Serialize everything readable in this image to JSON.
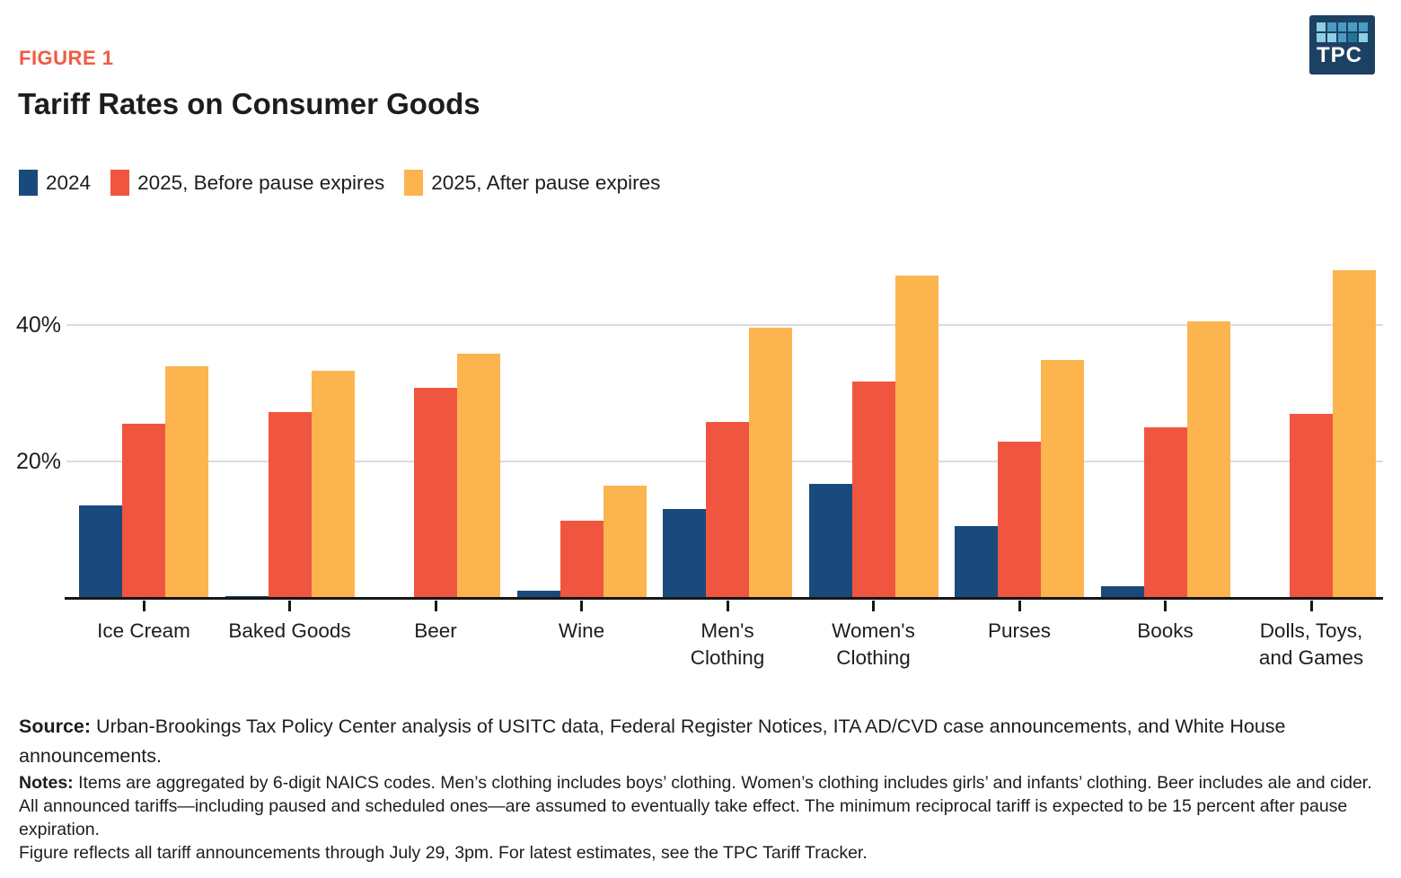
{
  "figure_label": "FIGURE 1",
  "title": "Tariff Rates on Consumer Goods",
  "logo": {
    "text": "TPC",
    "bg_color": "#1c4163",
    "square_colors": {
      "light": "#8ecfe3",
      "med": "#4a9cc4",
      "dark": "#23749b"
    },
    "square_pattern": [
      [
        "light",
        "med",
        "med",
        "med",
        "med"
      ],
      [
        "light",
        "light",
        "med",
        "dark",
        "light"
      ]
    ]
  },
  "chart_data": {
    "type": "bar",
    "title": "Tariff Rates on Consumer Goods",
    "categories": [
      "Ice Cream",
      "Baked Goods",
      "Beer",
      "Wine",
      "Men's Clothing",
      "Women's Clothing",
      "Purses",
      "Books",
      "Dolls, Toys, and Games"
    ],
    "category_label_lines": [
      [
        "Ice Cream"
      ],
      [
        "Baked Goods"
      ],
      [
        "Beer"
      ],
      [
        "Wine"
      ],
      [
        "Men's",
        "Clothing"
      ],
      [
        "Women's",
        "Clothing"
      ],
      [
        "Purses"
      ],
      [
        "Books"
      ],
      [
        "Dolls, Toys,",
        "and Games"
      ]
    ],
    "series": [
      {
        "name": "2024",
        "color": "#1a4a7c",
        "values": [
          13.5,
          0.3,
          0,
          1,
          13,
          16.7,
          10.5,
          1.7,
          0
        ]
      },
      {
        "name": "2025, Before pause expires",
        "color": "#f0563f",
        "values": [
          25.5,
          27.3,
          30.8,
          11.3,
          25.8,
          31.7,
          22.9,
          25,
          27
        ]
      },
      {
        "name": "2025, After pause expires",
        "color": "#fcb44e",
        "values": [
          34,
          33.3,
          35.8,
          16.4,
          39.6,
          47.3,
          34.9,
          40.5,
          48
        ]
      }
    ],
    "unit": "percent",
    "xlabel": "",
    "ylabel": "",
    "yticks": [
      {
        "value": 20,
        "label": "20%"
      },
      {
        "value": 40,
        "label": "40%"
      }
    ],
    "ylim": [
      0,
      50
    ],
    "grid": "horizontal",
    "legend_position": "top-left"
  },
  "source": {
    "label": "Source:",
    "text": "Urban-Brookings Tax Policy Center analysis of USITC data, Federal Register Notices, ITA AD/CVD case announcements, and White House announcements."
  },
  "notes": {
    "label": "Notes:",
    "text": "Items are aggregated by 6-digit NAICS codes. Men’s clothing includes boys’ clothing. Women’s clothing includes girls’ and infants’ clothing. Beer includes ale and cider. All announced tariffs—including paused and scheduled ones—are assumed to eventually take effect. The minimum reciprocal tariff is expected to be 15 percent after pause expiration.",
    "figure_note": "Figure reflects all tariff announcements through July 29, 3pm. For latest estimates, see the TPC Tariff Tracker."
  }
}
